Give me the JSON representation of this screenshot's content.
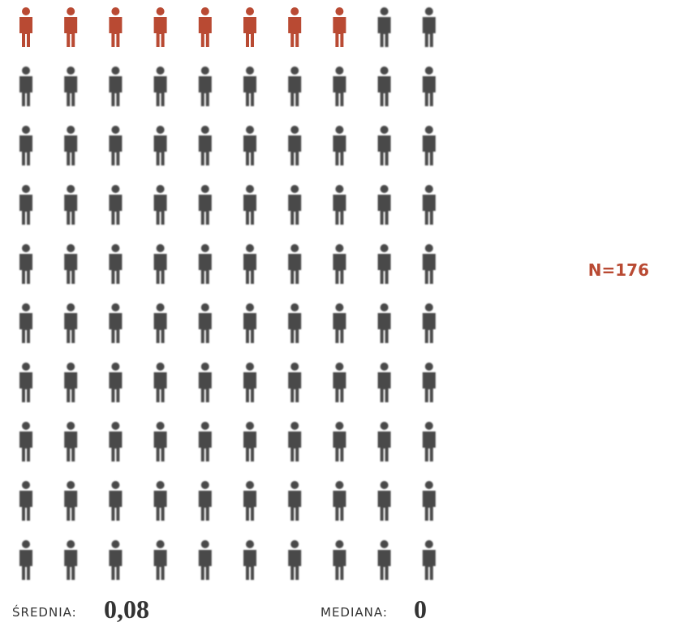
{
  "pictogram": {
    "highlighted": 8,
    "total": 100,
    "highlight_color": "#b94a33",
    "base_color": "#4a4a4a"
  },
  "sample_size": "N=176",
  "stats": [
    {
      "label": "ŚREDNIA:",
      "value": "0,08"
    },
    {
      "label": "MEDIANA:",
      "value": "0"
    }
  ]
}
